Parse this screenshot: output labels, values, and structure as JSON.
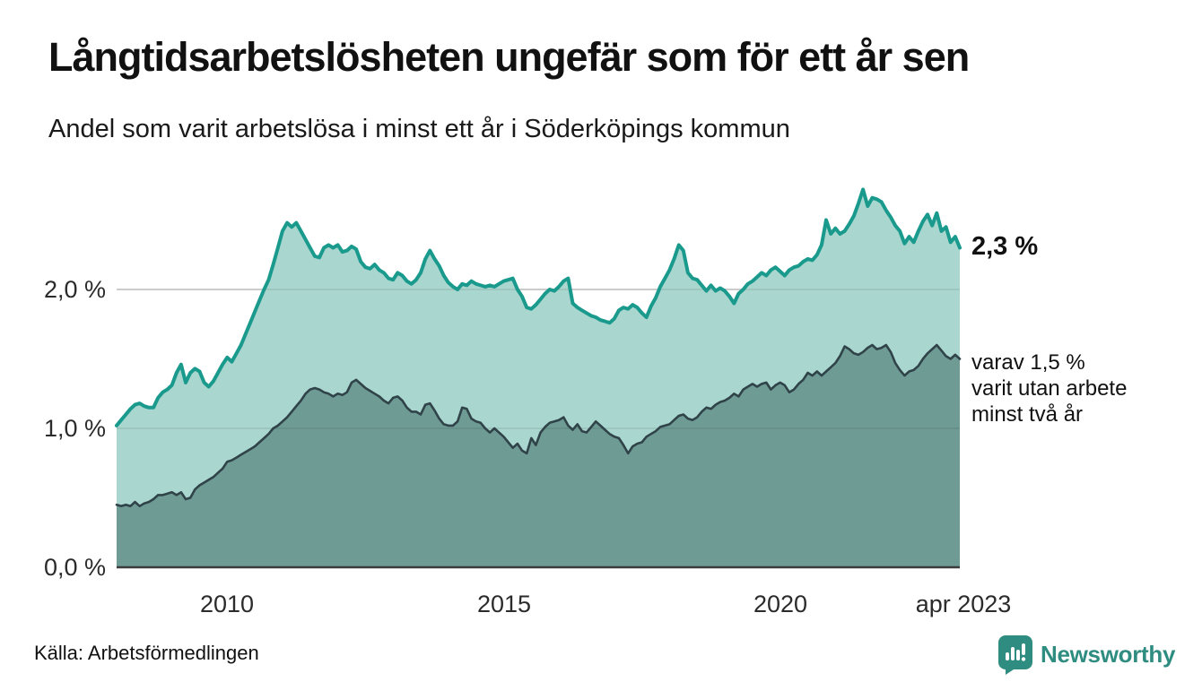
{
  "header": {
    "title": "Långtidsarbetslösheten ungefär som för ett år sen",
    "subtitle": "Andel som varit arbetslösa i minst ett år i Söderköpings kommun"
  },
  "chart_data": {
    "type": "area",
    "title": "Långtidsarbetslösheten ungefär som för ett år sen",
    "subtitle": "Andel som varit arbetslösa i minst ett år i Söderköpings kommun",
    "unit": "%",
    "x_domain": {
      "start": "2008-01",
      "end": "2023-04",
      "frequency": "monthly"
    },
    "x_ticks": [
      {
        "label": "2010",
        "month_index": 24
      },
      {
        "label": "2015",
        "month_index": 84
      },
      {
        "label": "2020",
        "month_index": 144
      },
      {
        "label": "apr 2023",
        "month_index": 183
      }
    ],
    "y_ticks": [
      {
        "label": "2,0 %",
        "value": 2.0
      },
      {
        "label": "1,0 %",
        "value": 1.0
      },
      {
        "label": "0,0 %",
        "value": 0.0
      }
    ],
    "ylim": [
      0,
      2.85
    ],
    "gridline_values": [
      1.0,
      2.0
    ],
    "grid_color": "#dcdcdc",
    "series": [
      {
        "name": "Andel arbetslösa minst ett år",
        "line_color": "#1a9a8c",
        "fill_color": "#a9d6ce",
        "end_label": "2,3 %",
        "end_value": 2.3,
        "values": [
          1.02,
          1.06,
          1.1,
          1.14,
          1.17,
          1.18,
          1.16,
          1.15,
          1.15,
          1.22,
          1.26,
          1.28,
          1.31,
          1.4,
          1.46,
          1.33,
          1.4,
          1.43,
          1.41,
          1.33,
          1.3,
          1.34,
          1.4,
          1.46,
          1.51,
          1.48,
          1.54,
          1.6,
          1.68,
          1.76,
          1.84,
          1.92,
          2.0,
          2.07,
          2.18,
          2.3,
          2.42,
          2.48,
          2.45,
          2.48,
          2.42,
          2.36,
          2.3,
          2.24,
          2.23,
          2.3,
          2.32,
          2.3,
          2.32,
          2.27,
          2.28,
          2.31,
          2.29,
          2.2,
          2.16,
          2.15,
          2.18,
          2.14,
          2.12,
          2.08,
          2.07,
          2.12,
          2.1,
          2.06,
          2.04,
          2.07,
          2.12,
          2.22,
          2.28,
          2.22,
          2.17,
          2.1,
          2.05,
          2.02,
          2.0,
          2.04,
          2.03,
          2.06,
          2.04,
          2.03,
          2.02,
          2.03,
          2.02,
          2.04,
          2.06,
          2.07,
          2.08,
          2.0,
          1.95,
          1.87,
          1.86,
          1.89,
          1.93,
          1.97,
          2.0,
          1.99,
          2.02,
          2.06,
          2.08,
          1.9,
          1.87,
          1.85,
          1.83,
          1.81,
          1.8,
          1.78,
          1.77,
          1.76,
          1.79,
          1.85,
          1.87,
          1.86,
          1.89,
          1.87,
          1.83,
          1.8,
          1.88,
          1.94,
          2.02,
          2.08,
          2.14,
          2.22,
          2.32,
          2.28,
          2.12,
          2.08,
          2.07,
          2.03,
          1.99,
          2.03,
          1.99,
          2.01,
          1.99,
          1.95,
          1.9,
          1.97,
          2.0,
          2.04,
          2.06,
          2.09,
          2.12,
          2.1,
          2.14,
          2.16,
          2.13,
          2.1,
          2.14,
          2.16,
          2.17,
          2.2,
          2.22,
          2.21,
          2.25,
          2.32,
          2.5,
          2.4,
          2.44,
          2.4,
          2.42,
          2.47,
          2.53,
          2.62,
          2.72,
          2.6,
          2.66,
          2.65,
          2.63,
          2.57,
          2.52,
          2.46,
          2.42,
          2.33,
          2.38,
          2.34,
          2.42,
          2.49,
          2.54,
          2.46,
          2.55,
          2.42,
          2.45,
          2.34,
          2.38,
          2.3
        ]
      },
      {
        "name": "Varav arbetslösa minst två år",
        "line_color": "#2f4349",
        "fill_color": "#6f9b95",
        "end_value": 1.5,
        "annotation_lines": [
          "varav 1,5 %",
          "varit utan arbete",
          "minst två år"
        ],
        "values": [
          0.45,
          0.44,
          0.45,
          0.44,
          0.47,
          0.44,
          0.46,
          0.47,
          0.49,
          0.52,
          0.52,
          0.53,
          0.54,
          0.52,
          0.54,
          0.49,
          0.5,
          0.56,
          0.59,
          0.61,
          0.63,
          0.65,
          0.68,
          0.71,
          0.76,
          0.77,
          0.79,
          0.81,
          0.83,
          0.85,
          0.87,
          0.9,
          0.93,
          0.96,
          1.0,
          1.02,
          1.05,
          1.08,
          1.12,
          1.16,
          1.2,
          1.25,
          1.28,
          1.29,
          1.28,
          1.26,
          1.25,
          1.23,
          1.25,
          1.24,
          1.26,
          1.33,
          1.35,
          1.32,
          1.29,
          1.27,
          1.25,
          1.23,
          1.2,
          1.18,
          1.22,
          1.23,
          1.2,
          1.15,
          1.12,
          1.12,
          1.1,
          1.17,
          1.18,
          1.13,
          1.07,
          1.03,
          1.02,
          1.02,
          1.05,
          1.15,
          1.14,
          1.07,
          1.05,
          1.04,
          1.0,
          0.97,
          1.0,
          0.97,
          0.94,
          0.9,
          0.86,
          0.89,
          0.84,
          0.82,
          0.93,
          0.88,
          0.97,
          1.01,
          1.04,
          1.05,
          1.06,
          1.08,
          1.02,
          0.99,
          1.03,
          0.98,
          0.97,
          1.01,
          1.05,
          1.02,
          0.99,
          0.96,
          0.94,
          0.93,
          0.88,
          0.82,
          0.87,
          0.89,
          0.9,
          0.94,
          0.96,
          0.98,
          1.01,
          1.02,
          1.03,
          1.06,
          1.09,
          1.1,
          1.07,
          1.06,
          1.08,
          1.12,
          1.15,
          1.14,
          1.17,
          1.19,
          1.2,
          1.22,
          1.25,
          1.23,
          1.28,
          1.3,
          1.32,
          1.3,
          1.32,
          1.33,
          1.28,
          1.31,
          1.33,
          1.31,
          1.26,
          1.28,
          1.32,
          1.35,
          1.4,
          1.38,
          1.41,
          1.38,
          1.41,
          1.44,
          1.47,
          1.52,
          1.59,
          1.57,
          1.54,
          1.53,
          1.55,
          1.58,
          1.6,
          1.57,
          1.58,
          1.6,
          1.55,
          1.47,
          1.42,
          1.38,
          1.41,
          1.42,
          1.45,
          1.5,
          1.54,
          1.57,
          1.6,
          1.56,
          1.52,
          1.5,
          1.53,
          1.5
        ]
      }
    ]
  },
  "footer": {
    "source_label": "Källa: Arbetsförmedlingen",
    "brand_name": "Newsworthy",
    "brand_color": "#2f8c80"
  }
}
